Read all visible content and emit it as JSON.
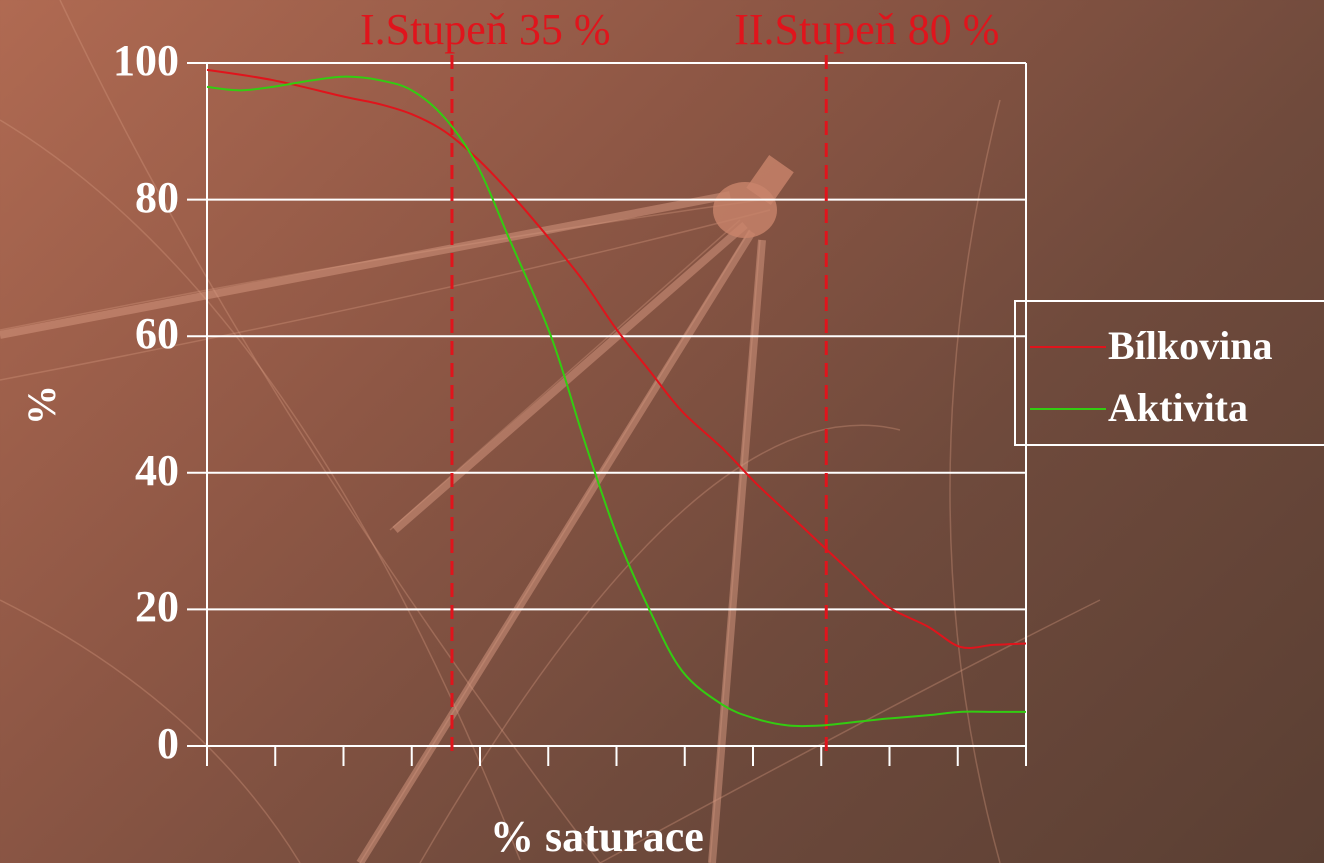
{
  "chart_data": {
    "type": "line",
    "xlabel": "% saturace",
    "ylabel": "%",
    "ylim": [
      0,
      100
    ],
    "xlim": [
      0,
      100
    ],
    "y_ticks": [
      "0",
      "20",
      "40",
      "60",
      "80",
      "100"
    ],
    "x_tick_count": 13,
    "grid": "horizontal",
    "legend_position": "right",
    "annotations": [
      {
        "label": "I.Stupeň 35 %",
        "x": 29.3,
        "color": "#e0141c"
      },
      {
        "label": "II.Stupeň 80 %",
        "x": 75
      },
      {
        "label": "",
        "x": 0
      }
    ],
    "series": [
      {
        "name": "Bílkovina",
        "color": "#e0141c",
        "x": [
          0,
          8,
          17,
          21,
          25,
          29,
          33,
          37,
          42,
          46,
          50,
          54,
          58,
          63,
          67,
          71,
          75,
          79,
          83,
          88,
          92,
          96,
          100
        ],
        "y": [
          99,
          97.5,
          95,
          94,
          92.5,
          90,
          86,
          81,
          74,
          68,
          61,
          55,
          49,
          43.5,
          38.5,
          34,
          29.5,
          25,
          20.5,
          17.5,
          14.5,
          14.8,
          15
        ]
      },
      {
        "name": "Aktivita",
        "color": "#33cc11",
        "x": [
          0,
          4,
          8,
          13,
          17,
          21,
          25,
          29,
          33,
          37,
          42,
          46,
          50,
          54,
          58,
          63,
          67,
          71,
          75,
          79,
          83,
          88,
          92,
          96,
          100
        ],
        "y": [
          96.5,
          96,
          96.5,
          97.5,
          98,
          97.5,
          96,
          92,
          85,
          74,
          60,
          45,
          31,
          20,
          11,
          6,
          4,
          3,
          3,
          3.5,
          4,
          4.5,
          5,
          5,
          5
        ]
      }
    ]
  }
}
